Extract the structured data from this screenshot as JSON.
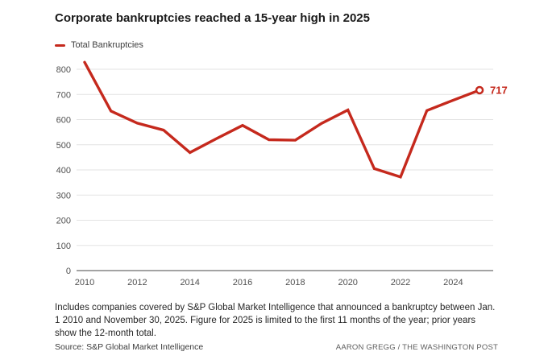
{
  "title": "Corporate bankruptcies reached a 15-year high in 2025",
  "legend": {
    "label": "Total Bankruptcies"
  },
  "footnote": "Includes companies covered by S&P Global Market Intelligence that announced a bankruptcy between Jan. 1 2010 and November 30, 2025. Figure for 2025 is limited to the first 11 months of the year; prior years show the 12-month total.",
  "source": "Source: S&P Global Market Intelligence",
  "credit": "AARON GREGG / THE WASHINGTON POST",
  "colors": {
    "line": "#c5291d",
    "grid": "#e3e3e3",
    "axis": "#a3a3a3",
    "tick_label": "#505050",
    "title": "#1a1a1a"
  },
  "chart_data": {
    "type": "line",
    "title": "Corporate bankruptcies reached a 15-year high in 2025",
    "x": [
      2010,
      2011,
      2012,
      2013,
      2014,
      2015,
      2016,
      2017,
      2018,
      2019,
      2020,
      2021,
      2022,
      2023,
      2024,
      2025
    ],
    "series": [
      {
        "name": "Total Bankruptcies",
        "values": [
          828,
          634,
          586,
          558,
          469,
          524,
          577,
          520,
          518,
          585,
          638,
          405,
          372,
          636,
          677,
          717
        ]
      }
    ],
    "end_label": "717",
    "xticks": [
      2010,
      2012,
      2014,
      2016,
      2018,
      2020,
      2022,
      2024
    ],
    "yticks": [
      0,
      100,
      200,
      300,
      400,
      500,
      600,
      700,
      800
    ],
    "ylim": [
      0,
      850
    ],
    "xlabel": "",
    "ylabel": "",
    "grid": "horizontal",
    "legend_position": "top-left"
  }
}
